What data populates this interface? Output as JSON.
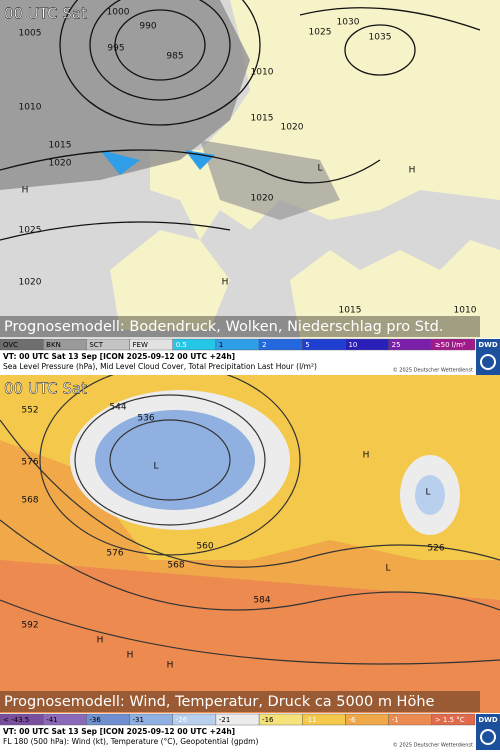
{
  "panels": [
    {
      "time": "00 UTC Sat",
      "caption": "Prognosemodell: Bodendruck, Wolken, Niederschlag pro Std.",
      "legend": [
        "OVC",
        "BKN",
        "SCT",
        "FEW",
        "0.5",
        "1",
        "2",
        "5",
        "10",
        "25",
        "≥50 l/m²"
      ],
      "legend_colors": [
        "#6e6e6e",
        "#9a9a9a",
        "#c4c4c4",
        "#e2e2e2",
        "#26c6e8",
        "#2f9ee8",
        "#2468e0",
        "#1f3fd0",
        "#2a1fb8",
        "#7a1fa8",
        "#a01a8a"
      ],
      "valid": "VT: 00 UTC Sat  13 Sep [ICON 2025-09-12 00 UTC +24h]",
      "description": "Sea Level Pressure (hPa), Mid Level Cloud Cover, Total Precipitation Last Hour (l/m²)",
      "copyright": "© 2025 Deutscher Wetterdienst",
      "logo": "DWD",
      "map_labels": [
        "1000",
        "990",
        "995",
        "985",
        "1005",
        "1010",
        "1015",
        "1020",
        "1025",
        "1020",
        "1030",
        "1035",
        "1025",
        "1010",
        "1015",
        "1020",
        "1020",
        "1015",
        "1010",
        "H",
        "H",
        "H",
        "L"
      ]
    },
    {
      "time": "00 UTC Sat",
      "caption": "Prognosemodell: Wind, Temperatur, Druck ca 5000 m Höhe",
      "legend": [
        "< -43.5",
        "-41",
        "-36",
        "-31",
        "-26",
        "-21",
        "-16",
        "-11",
        "-6",
        "-1",
        "> 1.5 °C"
      ],
      "legend_colors": [
        "#7a4fa0",
        "#8a6ab8",
        "#6f8fd0",
        "#8fb0e0",
        "#b8d0ee",
        "#ececec",
        "#f6e27a",
        "#f4c84a",
        "#f0a848",
        "#ec8a50",
        "#e06a4a"
      ],
      "valid": "VT: 00 UTC Sat  13 Sep [ICON 2025-09-12 00 UTC +24h]",
      "description": "FL 180 (500 hPa): Wind (kt), Temperature (°C), Geopotential (gpdm)",
      "copyright": "© 2025 Deutscher Wetterdienst",
      "logo": "DWD",
      "map_labels": [
        "552",
        "544",
        "536",
        "560",
        "568",
        "576",
        "584",
        "592",
        "576",
        "568",
        "526",
        "L",
        "L",
        "L",
        "H",
        "H",
        "H",
        "H"
      ]
    }
  ]
}
